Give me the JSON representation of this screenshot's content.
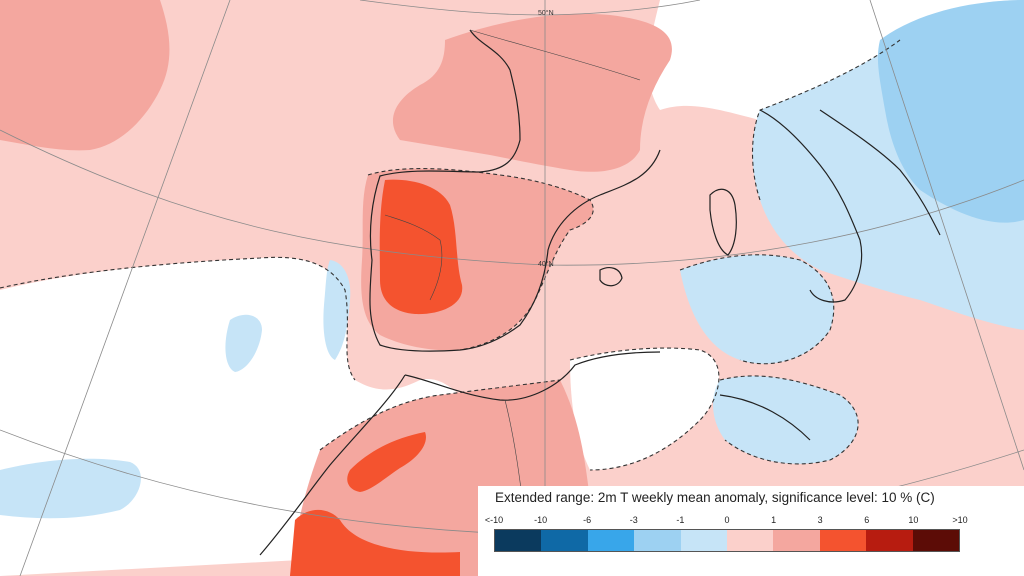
{
  "map": {
    "latitude_labels": [
      "50°N",
      "40°N"
    ],
    "palette": {
      "warm_1_to_3": "#f4a79f",
      "warm_0_to_1": "#fbd0cb",
      "warm_3_to_6": "#f4532f",
      "cool_0_to_minus1": "#c6e4f7",
      "cool_minus1_to_minus3": "#9dd1f2",
      "neutral": "#ffffff",
      "coast": "#222222",
      "graticule": "#8a8a8a"
    }
  },
  "legend": {
    "title": "Extended range: 2m T weekly mean anomaly, significance level: 10 % (C)",
    "ticks": [
      "<-10",
      "-10",
      "-6",
      "-3",
      "-1",
      "0",
      "1",
      "3",
      "6",
      "10",
      ">10"
    ],
    "colors": [
      "#0b3a5e",
      "#0f69a6",
      "#38a6ea",
      "#9dd1f2",
      "#c6e4f7",
      "#fbd0cb",
      "#f4a79f",
      "#f4532f",
      "#b71c10",
      "#5c0c06"
    ]
  }
}
